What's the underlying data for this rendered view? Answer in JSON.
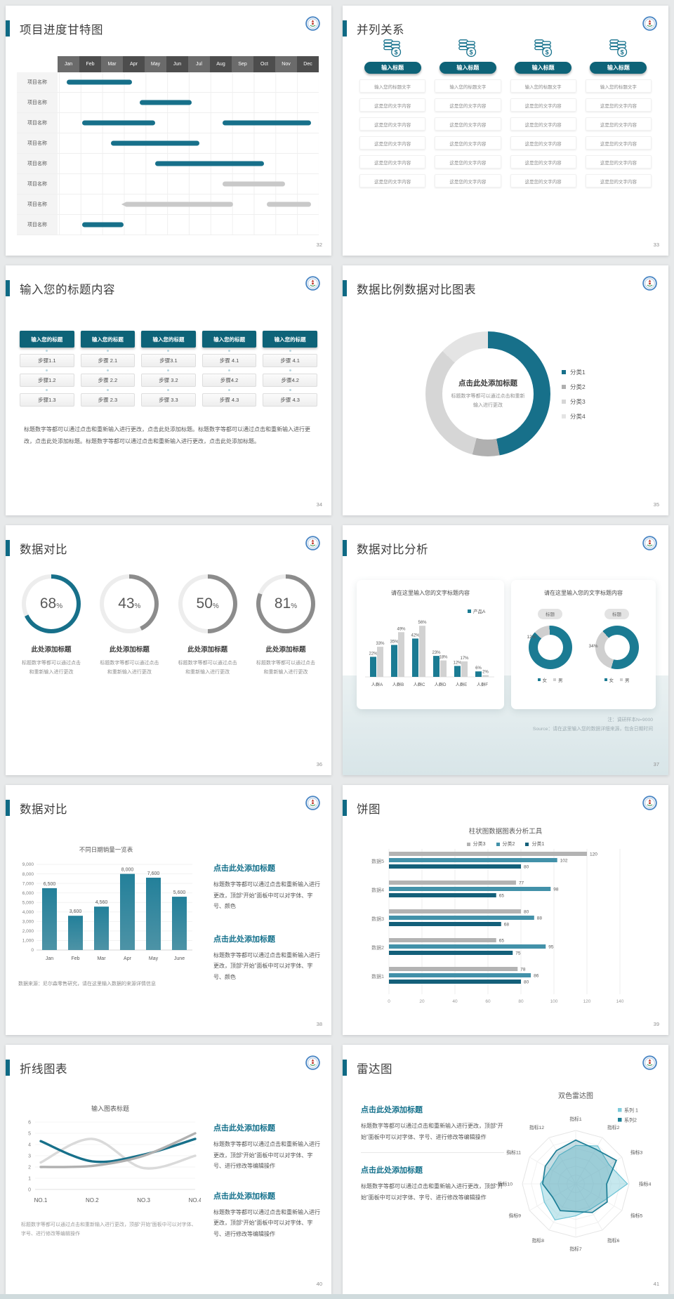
{
  "colors": {
    "teal": "#17708a",
    "teal_dark": "#0e6378",
    "teal_heading": "#15718c",
    "gray_bar": "#c9c9c9"
  },
  "slides": {
    "gantt": {
      "page": "32",
      "title": "项目进度甘特图",
      "row_label": "项目名称",
      "rows": 8,
      "months": [
        "Jan",
        "Feb",
        "Mar",
        "Apr",
        "May",
        "Jun",
        "Jul",
        "Aug",
        "Sep",
        "Oct",
        "Nov",
        "Dec"
      ],
      "bars": [
        {
          "row": 0,
          "s": 3,
          "e": 28,
          "c": "teal"
        },
        {
          "row": 1,
          "s": 31,
          "e": 51,
          "c": "teal"
        },
        {
          "row": 2,
          "s": 9,
          "e": 37,
          "c": "teal"
        },
        {
          "row": 2,
          "s": 63,
          "e": 97,
          "c": "teal"
        },
        {
          "row": 3,
          "s": 20,
          "e": 54,
          "c": "teal"
        },
        {
          "row": 4,
          "s": 37,
          "e": 79,
          "c": "teal"
        },
        {
          "row": 5,
          "s": 63,
          "e": 87,
          "c": "gray"
        },
        {
          "row": 6,
          "s": 24,
          "e": 67,
          "c": "gray",
          "arrow": true
        },
        {
          "row": 6,
          "s": 80,
          "e": 97,
          "c": "gray"
        },
        {
          "row": 7,
          "s": 9,
          "e": 25,
          "c": "teal"
        }
      ]
    },
    "parallel": {
      "page": "33",
      "title": "并列关系",
      "pill": "输入标题",
      "first_row": "输入您的标题文字",
      "row": "这是您的文字内容",
      "columns": 4,
      "rows_per_column": 6
    },
    "steps": {
      "page": "34",
      "title": "输入您的标题内容",
      "header": "输入您的标题",
      "columns": [
        [
          "步骤1.1",
          "步骤1.2",
          "步骤1.3"
        ],
        [
          "步骤 2.1",
          "步骤 2.2",
          "步骤 2.3"
        ],
        [
          "步骤3.1",
          "步骤 3.2",
          "步骤 3.3"
        ],
        [
          "步骤 4.1",
          "步骤4.2",
          "步骤 4.3"
        ],
        [
          "步骤 4.1",
          "步骤4.2",
          "步骤 4.3"
        ]
      ],
      "paragraph": "标题数字等都可以通过点击和重新输入进行更改，点击此处添加标题。标题数字等都可以通过点击和重新输入进行更改，点击此处添加标题。标题数字等都可以通过点击和重新输入进行更改，点击此处添加标题。"
    },
    "donut": {
      "page": "35",
      "title": "数据比例数据对比图表",
      "center_title": "点击此处添加标题",
      "center_sub": "标题数字等都可以通过点击和重新输入进行更改",
      "segments": [
        {
          "label": "分类1",
          "value": 47,
          "color": "#17708a"
        },
        {
          "label": "分类2",
          "value": 7,
          "color": "#b0b0b0"
        },
        {
          "label": "分类3",
          "value": 33,
          "color": "#d6d6d6"
        },
        {
          "label": "分类4",
          "value": 13,
          "color": "#e4e4e4"
        }
      ]
    },
    "rings": {
      "page": "36",
      "title": "数据对比",
      "item_title": "此处添加标题",
      "item_text": "标题数字等都可以通过点击和重新输入进行更改",
      "items": [
        {
          "percent": 68,
          "color": "#17708a"
        },
        {
          "percent": 43,
          "color": "#8c8c8c"
        },
        {
          "percent": 50,
          "color": "#8c8c8c"
        },
        {
          "percent": 81,
          "color": "#8c8c8c"
        }
      ]
    },
    "analysis": {
      "page": "37",
      "title": "数据对比分析",
      "note_line1": "注：调研样本N=9000",
      "note_line2": "Source：请在这里输入您的数据详细来源，包含日期时间",
      "bar_card": {
        "title": "请在这里输入您的文字标题内容",
        "legend": "产品A",
        "categories": [
          "人群A",
          "人群B",
          "人群C",
          "人群D",
          "人群E",
          "人群F"
        ],
        "series": [
          {
            "color": "#1b7b93",
            "values": [
              22,
              35,
              42,
              23,
              12,
              6
            ]
          },
          {
            "color": "#d2d2d2",
            "values": [
              33,
              49,
              56,
              18,
              17,
              2
            ]
          }
        ]
      },
      "donut_card": {
        "title": "请在这里输入您的文字标题内容",
        "badge": "标题",
        "donuts": [
          {
            "label": "12%",
            "gray_pct": 12,
            "from_deg": -46
          },
          {
            "label": "34%",
            "gray_pct": 34,
            "from_deg": 196
          }
        ],
        "legend": [
          {
            "label": "女",
            "color": "#1b7b93"
          },
          {
            "label": "男",
            "color": "#cfcfcf"
          }
        ]
      }
    },
    "barchart": {
      "page": "38",
      "title": "数据对比",
      "chart_title": "不同日期销量一览表",
      "categories": [
        "Jan",
        "Feb",
        "Mar",
        "Apr",
        "May",
        "June"
      ],
      "values": [
        6500,
        3600,
        4560,
        8000,
        7600,
        5600
      ],
      "labels": [
        "6,500",
        "3,600",
        "4,560",
        "8,000",
        "7,600",
        "5,600"
      ],
      "y_max": 9000,
      "y_step": 1000,
      "source": "数据来源：尼尔森零售研究，请在这里输入数据的来源详情信息",
      "blocks": [
        {
          "heading": "点击此处添加标题",
          "text": "标题数字等都可以通过点击和重新输入进行更改，顶部“开始”面板中可以对字体、字号、颜色"
        },
        {
          "heading": "点击此处添加标题",
          "text": "标题数字等都可以通过点击和重新输入进行更改，顶部“开始”面板中可以对字体、字号、颜色"
        }
      ]
    },
    "hbar": {
      "page": "39",
      "title": "饼图",
      "chart_title": "柱状图数据图表分析工具",
      "legend": [
        {
          "label": "分类3",
          "color": "#b3b3b3"
        },
        {
          "label": "分类2",
          "color": "#4291a9"
        },
        {
          "label": "分类1",
          "color": "#14607a"
        }
      ],
      "groups": [
        "数据5",
        "数据4",
        "数据3",
        "数据2",
        "数据1"
      ],
      "values": [
        [
          120,
          102,
          80
        ],
        [
          77,
          98,
          65
        ],
        [
          80,
          88,
          68
        ],
        [
          65,
          95,
          75
        ],
        [
          78,
          86,
          80
        ]
      ],
      "x_ticks": [
        0,
        20,
        40,
        60,
        80,
        100,
        120,
        140
      ]
    },
    "linechart": {
      "page": "40",
      "title": "折线图表",
      "chart_title": "输入图表标题",
      "x_labels": [
        "NO.1",
        "NO.2",
        "NO.3",
        "NO.4"
      ],
      "y_ticks": [
        6,
        5,
        4,
        3,
        2,
        1,
        0
      ],
      "series": [
        {
          "color": "#dadada",
          "values": [
            2.4,
            4.5,
            1.9,
            3.0
          ]
        },
        {
          "color": "#17708a",
          "values": [
            4.3,
            2.5,
            3.1,
            4.5
          ]
        },
        {
          "color": "#b0b0b0",
          "values": [
            2.0,
            2.1,
            3.0,
            5.0
          ]
        }
      ],
      "caption": "标题数字等都可以通过点击和重新输入进行更改，顶部“开始”面板中可以对字体、字号、进行修改等编辑操作",
      "blocks": [
        {
          "heading": "点击此处添加标题",
          "text": "标题数字等都可以通过点击和重新输入进行更改，顶部“开始”面板中可以对字体、字号、进行修改等编辑操作"
        },
        {
          "heading": "点击此处添加标题",
          "text": "标题数字等都可以通过点击和重新输入进行更改，顶部“开始”面板中可以对字体、字号、进行修改等编辑操作"
        }
      ]
    },
    "radar": {
      "page": "41",
      "title": "雷达图",
      "chart_title": "双色雷达图",
      "axes": [
        "指标1",
        "指标2",
        "指标3",
        "指标4",
        "指标5",
        "指标6",
        "指标7",
        "指标8",
        "指标9",
        "指标10",
        "指标11",
        "指标12"
      ],
      "series": [
        {
          "label": "系列 1",
          "stroke": "#6cc3d5",
          "fill": "rgba(142,209,222,0.5)",
          "swatch": "#7ecbdc",
          "values": [
            0.72,
            0.82,
            0.72,
            0.97,
            0.62,
            0.55,
            0.6,
            0.78,
            0.68,
            0.66,
            0.55,
            0.62
          ]
        },
        {
          "label": "系列2",
          "stroke": "#1c7e96",
          "fill": "rgba(31,125,148,0.25)",
          "swatch": "#1c7e96",
          "values": [
            0.82,
            0.75,
            0.88,
            0.58,
            0.68,
            0.62,
            0.52,
            0.58,
            0.5,
            0.62,
            0.66,
            0.72
          ]
        }
      ],
      "blocks": [
        {
          "heading": "点击此处添加标题",
          "text": "标题数字等都可以通过点击和重新输入进行更改，顶部“开始”面板中可以对字体、字号、进行修改等编辑操作"
        },
        {
          "heading": "点击此处添加标题",
          "text": "标题数字等都可以通过点击和重新输入进行更改，顶部“开始”面板中可以对字体、字号、进行修改等编辑操作"
        }
      ]
    }
  }
}
